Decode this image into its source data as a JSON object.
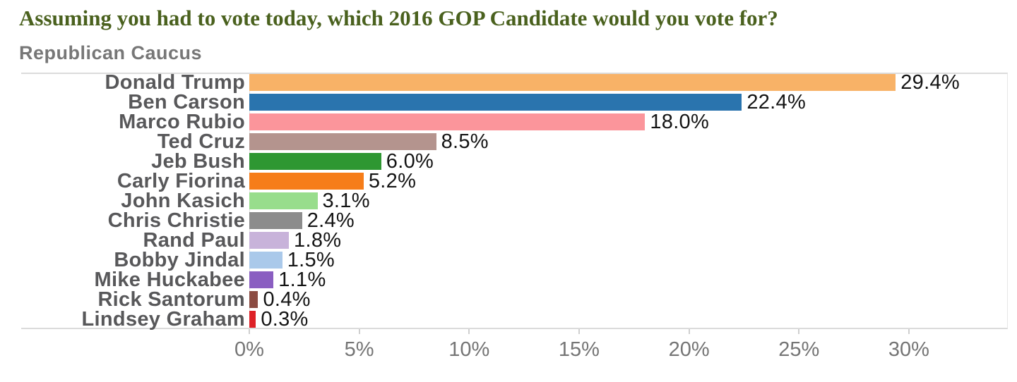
{
  "header": {
    "title": "Assuming you had to vote today, which 2016 GOP Candidate would you vote for?",
    "subtitle": "Republican Caucus"
  },
  "colors": {
    "title_text": "#4A611E",
    "subtitle_text": "#777777",
    "category_label_text": "#58585A",
    "value_label_text": "#141414",
    "axis_label_text": "#757575",
    "plot_border": "#DBDBDB"
  },
  "chart_data": {
    "type": "bar",
    "orientation": "horizontal",
    "title": "Assuming you had to vote today, which 2016 GOP Candidate would you vote for?",
    "subtitle": "Republican Caucus",
    "categories": [
      "Donald Trump",
      "Ben Carson",
      "Marco Rubio",
      "Ted Cruz",
      "Jeb Bush",
      "Carly Fiorina",
      "John Kasich",
      "Chris Christie",
      "Rand Paul",
      "Bobby Jindal",
      "Mike Huckabee",
      "Rick Santorum",
      "Lindsey Graham"
    ],
    "values": [
      29.4,
      22.4,
      18.0,
      8.5,
      6.0,
      5.2,
      3.1,
      2.4,
      1.8,
      1.5,
      1.1,
      0.4,
      0.3
    ],
    "value_labels": [
      "29.4%",
      "22.4%",
      "18.0%",
      "8.5%",
      "6.0%",
      "5.2%",
      "3.1%",
      "2.4%",
      "1.8%",
      "1.5%",
      "1.1%",
      "0.4%",
      "0.3%"
    ],
    "bar_colors": [
      "#F8B267",
      "#2A74AE",
      "#FB959B",
      "#B4948E",
      "#2E9732",
      "#F67D19",
      "#98DD8C",
      "#8C8C8C",
      "#C8B3DA",
      "#AAC9EA",
      "#8A5EC1",
      "#8B4B42",
      "#DE2127"
    ],
    "xlabel": "",
    "ylabel": "",
    "x_ticks": [
      0,
      5,
      10,
      15,
      20,
      25,
      30
    ],
    "x_tick_labels": [
      "0%",
      "5%",
      "10%",
      "15%",
      "20%",
      "25%",
      "30%"
    ],
    "xlim": [
      0,
      34.5
    ],
    "grid": false,
    "legend": false
  }
}
